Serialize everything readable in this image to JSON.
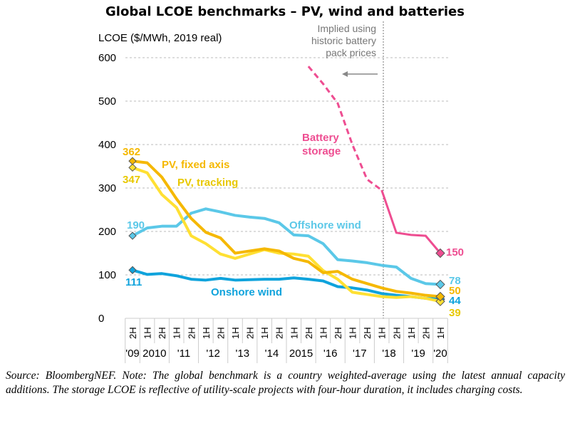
{
  "chart_data": {
    "type": "line",
    "title": "Global LCOE benchmarks – PV, wind and batteries",
    "ylabel": "LCOE ($/MWh, 2019 real)",
    "ylim": [
      0,
      600
    ],
    "yticks": [
      0,
      100,
      200,
      300,
      400,
      500,
      600
    ],
    "grid": "horizontal dashed",
    "x": [
      "2H",
      "1H",
      "2H",
      "1H",
      "2H",
      "1H",
      "2H",
      "1H",
      "2H",
      "1H",
      "2H",
      "1H",
      "2H",
      "1H",
      "2H",
      "1H",
      "2H",
      "1H",
      "2H",
      "1H",
      "2H",
      "1H"
    ],
    "years": [
      {
        "label": "'09",
        "span": 1
      },
      {
        "label": "2010",
        "span": 2
      },
      {
        "label": "'11",
        "span": 2
      },
      {
        "label": "'12",
        "span": 2
      },
      {
        "label": "'13",
        "span": 2
      },
      {
        "label": "'14",
        "span": 2
      },
      {
        "label": "2015",
        "span": 2
      },
      {
        "label": "'16",
        "span": 2
      },
      {
        "label": "'17",
        "span": 2
      },
      {
        "label": "'18",
        "span": 2
      },
      {
        "label": "'19",
        "span": 2
      },
      {
        "label": "'20",
        "span": 1
      }
    ],
    "series": [
      {
        "name": "PV, fixed axis",
        "color": "#F5B800",
        "values": [
          362,
          358,
          325,
          275,
          230,
          198,
          185,
          150,
          155,
          160,
          155,
          138,
          130,
          105,
          108,
          90,
          80,
          70,
          62,
          58,
          53,
          50
        ],
        "start_label": "362",
        "end_label": "50"
      },
      {
        "name": "PV, tracking",
        "color": "#FFE033",
        "values": [
          347,
          335,
          285,
          255,
          190,
          172,
          148,
          138,
          148,
          158,
          150,
          148,
          143,
          110,
          90,
          60,
          55,
          50,
          48,
          50,
          46,
          39
        ],
        "start_label": "347",
        "end_label": "39"
      },
      {
        "name": "Offshore wind",
        "color": "#5BC8E8",
        "values": [
          190,
          208,
          212,
          212,
          242,
          252,
          245,
          237,
          233,
          230,
          220,
          192,
          190,
          172,
          135,
          132,
          128,
          122,
          118,
          92,
          80,
          78
        ],
        "start_label": "190",
        "end_label": "78"
      },
      {
        "name": "Onshore wind",
        "color": "#0FA3DC",
        "values": [
          111,
          101,
          103,
          98,
          90,
          88,
          92,
          88,
          89,
          90,
          90,
          93,
          90,
          86,
          73,
          70,
          65,
          57,
          53,
          50,
          46,
          44
        ],
        "start_label": "111",
        "end_label": "44"
      },
      {
        "name": "Battery storage",
        "color": "#EE4D91",
        "values": [
          null,
          null,
          null,
          null,
          null,
          null,
          null,
          null,
          null,
          null,
          null,
          null,
          580,
          540,
          495,
          400,
          320,
          295,
          197,
          192,
          190,
          150
        ],
        "dashed_until_index": 17,
        "end_label": "150"
      }
    ],
    "annotation": {
      "text": [
        "Implied using",
        "historic battery",
        "pack prices"
      ],
      "arrow": "left",
      "divider_at": "1H '18"
    }
  },
  "note": "Source: BloombergNEF. Note: The global benchmark is a country weighted-average using the latest annual capacity additions. The storage LCOE is reflective of utility-scale projects with four-hour duration, it includes charging costs."
}
